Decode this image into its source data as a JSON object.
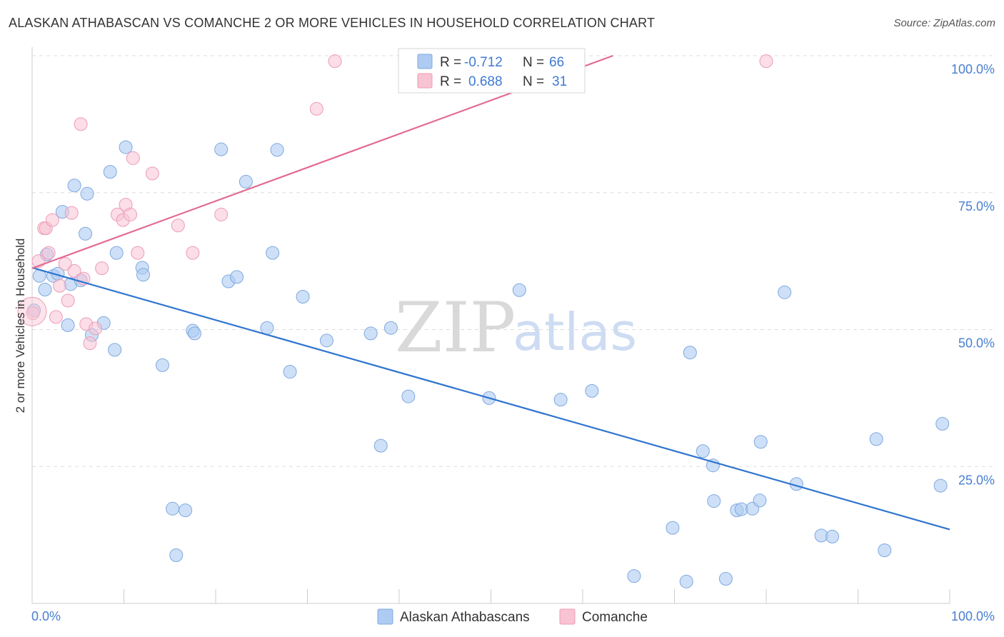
{
  "title": "ALASKAN ATHABASCAN VS COMANCHE 2 OR MORE VEHICLES IN HOUSEHOLD CORRELATION CHART",
  "source": "Source: ZipAtlas.com",
  "watermark": {
    "zip": "ZIP",
    "atlas": "atlas"
  },
  "legend_box": {
    "rows": [
      {
        "r_label": "R =",
        "r_value": "-0.712",
        "n_label": "N =",
        "n_value": "66"
      },
      {
        "r_label": "R =",
        "r_value": "0.688",
        "n_label": "N =",
        "n_value": "31"
      }
    ]
  },
  "bottom_legend": [
    "Alaskan Athabascans",
    "Comanche"
  ],
  "chart_data": {
    "type": "scatter",
    "title": "ALASKAN ATHABASCAN VS COMANCHE 2 OR MORE VEHICLES IN HOUSEHOLD CORRELATION CHART",
    "xlabel": "",
    "ylabel": "2 or more Vehicles in Household",
    "xlim": [
      0,
      100
    ],
    "ylim": [
      0,
      100
    ],
    "x_tick_labels": [
      "0.0%",
      "100.0%"
    ],
    "y_ticks": [
      25,
      50,
      75,
      100
    ],
    "y_tick_labels": [
      "25.0%",
      "50.0%",
      "75.0%",
      "100.0%"
    ],
    "grid": true,
    "colors": {
      "blue_fill": "#aecbf2",
      "blue_stroke": "#7fa8e0",
      "blue_line": "#2e74cf",
      "pink_fill": "#f8c3d3",
      "pink_stroke": "#ee9bb6",
      "pink_line": "#e36a92",
      "tick_text": "#4a7fd0"
    },
    "series": [
      {
        "name": "Alaskan Athabascans",
        "color": "#aecbf2",
        "trend": {
          "x0": 0,
          "y0": 61.3,
          "x1": 100,
          "y1": 13.5
        },
        "points": [
          [
            0.2,
            53.5
          ],
          [
            0.8,
            59.8
          ],
          [
            1.4,
            57.3
          ],
          [
            1.6,
            63.7
          ],
          [
            2.3,
            59.8
          ],
          [
            2.8,
            60.2
          ],
          [
            3.3,
            71.5
          ],
          [
            3.9,
            50.8
          ],
          [
            4.2,
            58.3
          ],
          [
            4.6,
            76.3
          ],
          [
            5.3,
            59.0
          ],
          [
            5.8,
            67.5
          ],
          [
            6.0,
            74.8
          ],
          [
            6.5,
            49.0
          ],
          [
            7.8,
            51.2
          ],
          [
            8.5,
            78.8
          ],
          [
            9.0,
            46.3
          ],
          [
            9.2,
            64.0
          ],
          [
            10.2,
            83.3
          ],
          [
            12.0,
            61.3
          ],
          [
            12.1,
            60.0
          ],
          [
            14.2,
            43.5
          ],
          [
            15.3,
            17.3
          ],
          [
            15.7,
            8.8
          ],
          [
            16.7,
            17.0
          ],
          [
            17.5,
            49.8
          ],
          [
            17.7,
            49.3
          ],
          [
            20.6,
            82.9
          ],
          [
            21.4,
            58.8
          ],
          [
            22.3,
            59.6
          ],
          [
            23.3,
            77.0
          ],
          [
            25.6,
            50.3
          ],
          [
            26.2,
            64.0
          ],
          [
            26.7,
            82.8
          ],
          [
            28.1,
            42.3
          ],
          [
            29.5,
            56.0
          ],
          [
            32.1,
            48.0
          ],
          [
            36.9,
            49.3
          ],
          [
            38.0,
            28.8
          ],
          [
            39.1,
            50.3
          ],
          [
            41.0,
            37.8
          ],
          [
            49.8,
            37.5
          ],
          [
            53.1,
            57.2
          ],
          [
            57.6,
            37.2
          ],
          [
            61.0,
            38.8
          ],
          [
            65.6,
            5.0
          ],
          [
            69.8,
            13.8
          ],
          [
            71.3,
            4.0
          ],
          [
            71.7,
            45.8
          ],
          [
            73.1,
            27.8
          ],
          [
            74.2,
            25.2
          ],
          [
            74.3,
            18.7
          ],
          [
            75.6,
            4.5
          ],
          [
            76.8,
            17.0
          ],
          [
            77.3,
            17.2
          ],
          [
            78.5,
            17.3
          ],
          [
            79.3,
            18.8
          ],
          [
            79.4,
            29.5
          ],
          [
            82.0,
            56.8
          ],
          [
            83.3,
            21.8
          ],
          [
            86.0,
            12.4
          ],
          [
            87.2,
            12.2
          ],
          [
            92.0,
            30.0
          ],
          [
            92.9,
            9.7
          ],
          [
            99.0,
            21.5
          ],
          [
            99.2,
            32.8
          ]
        ]
      },
      {
        "name": "Comanche",
        "color": "#f8c3d3",
        "trend": {
          "x0": 0,
          "y0": 61.2,
          "x1": 63.3,
          "y1": 100
        },
        "points": [
          [
            0.1,
            53.0
          ],
          [
            0.7,
            62.5
          ],
          [
            1.3,
            68.5
          ],
          [
            1.5,
            68.5
          ],
          [
            1.8,
            64.0
          ],
          [
            2.2,
            70.0
          ],
          [
            2.6,
            52.3
          ],
          [
            3.0,
            58.0
          ],
          [
            3.6,
            62.0
          ],
          [
            3.9,
            55.3
          ],
          [
            4.3,
            71.3
          ],
          [
            4.6,
            60.7
          ],
          [
            5.3,
            87.5
          ],
          [
            5.6,
            59.3
          ],
          [
            5.9,
            51.0
          ],
          [
            6.3,
            47.5
          ],
          [
            6.9,
            50.2
          ],
          [
            7.6,
            61.2
          ],
          [
            9.3,
            71.0
          ],
          [
            9.9,
            70.0
          ],
          [
            10.2,
            72.8
          ],
          [
            10.7,
            71.0
          ],
          [
            11.0,
            81.3
          ],
          [
            11.5,
            64.0
          ],
          [
            13.1,
            78.5
          ],
          [
            15.9,
            69.0
          ],
          [
            17.5,
            64.0
          ],
          [
            20.6,
            71.0
          ],
          [
            33.0,
            99.0
          ],
          [
            31.0,
            90.3
          ],
          [
            80.0,
            99.0
          ]
        ]
      }
    ]
  }
}
